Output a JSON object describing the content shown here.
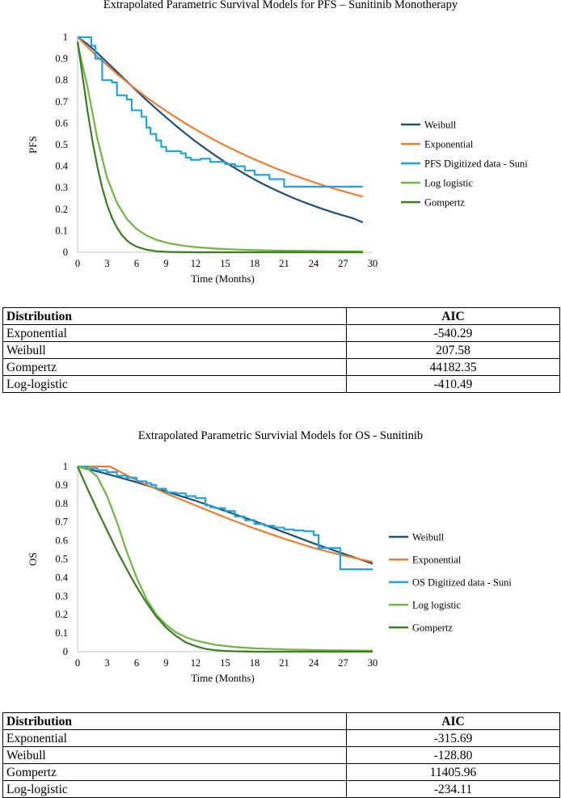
{
  "chart_data": [
    {
      "type": "line",
      "title": "Extrapolated Parametric Survival Models for PFS – Sunitinib Monotherapy",
      "xlabel": "Time (Months)",
      "ylabel": "PFS",
      "xlim": [
        0,
        30
      ],
      "ylim": [
        0,
        1
      ],
      "xticks": [
        "0",
        "3",
        "6",
        "9",
        "12",
        "15",
        "18",
        "21",
        "24",
        "27",
        "30"
      ],
      "yticks": [
        "0",
        "0.1",
        "0.2",
        "0.3",
        "0.4",
        "0.5",
        "0.6",
        "0.7",
        "0.8",
        "0.9",
        "1"
      ],
      "legend_position": "right",
      "series": [
        {
          "name": "Weibull",
          "color": "#1f4e79",
          "step": false,
          "x": [
            0,
            1,
            2,
            3,
            4,
            5,
            6,
            7,
            8,
            9,
            10,
            11,
            12,
            13,
            14,
            15,
            16,
            17,
            18,
            19,
            20,
            21,
            22,
            23,
            24,
            25,
            26,
            27,
            28,
            29
          ],
          "y": [
            1.0,
            0.968,
            0.927,
            0.883,
            0.839,
            0.795,
            0.751,
            0.708,
            0.667,
            0.627,
            0.588,
            0.551,
            0.515,
            0.482,
            0.45,
            0.419,
            0.391,
            0.364,
            0.338,
            0.314,
            0.292,
            0.271,
            0.251,
            0.233,
            0.216,
            0.2,
            0.185,
            0.171,
            0.158,
            0.139
          ]
        },
        {
          "name": "Exponential",
          "color": "#ed7d31",
          "step": false,
          "x": [
            0,
            1,
            2,
            3,
            4,
            5,
            6,
            7,
            8,
            9,
            10,
            11,
            12,
            13,
            14,
            15,
            16,
            17,
            18,
            19,
            20,
            21,
            22,
            23,
            24,
            25,
            26,
            27,
            28,
            29
          ],
          "y": [
            1.0,
            0.955,
            0.91,
            0.87,
            0.829,
            0.792,
            0.756,
            0.721,
            0.688,
            0.657,
            0.627,
            0.598,
            0.571,
            0.545,
            0.52,
            0.496,
            0.474,
            0.452,
            0.432,
            0.412,
            0.393,
            0.375,
            0.358,
            0.342,
            0.326,
            0.311,
            0.297,
            0.284,
            0.271,
            0.259
          ]
        },
        {
          "name": "PFS Digitized data - Suni",
          "color": "#1fa3dc",
          "step": true,
          "x": [
            0,
            1.4,
            1.8,
            2.5,
            3.5,
            4.0,
            5.0,
            5.5,
            6.5,
            7.0,
            7.4,
            8.0,
            8.5,
            9.0,
            10.5,
            11.0,
            11.5,
            12.5,
            13.5,
            14.0,
            15.0,
            16.0,
            17.0,
            18.0,
            19.5,
            21.0,
            24.0,
            29.0
          ],
          "y": [
            1.0,
            0.96,
            0.9,
            0.8,
            0.79,
            0.73,
            0.71,
            0.66,
            0.63,
            0.58,
            0.55,
            0.52,
            0.49,
            0.47,
            0.46,
            0.44,
            0.43,
            0.435,
            0.42,
            0.42,
            0.41,
            0.4,
            0.38,
            0.36,
            0.34,
            0.305,
            0.305,
            0.305
          ]
        },
        {
          "name": "Log logistic",
          "color": "#70b53f",
          "step": false,
          "x": [
            0,
            1,
            2,
            3,
            4,
            5,
            6,
            7,
            8,
            9,
            10,
            11,
            12,
            14,
            16,
            18,
            20,
            22,
            24,
            26,
            29
          ],
          "y": [
            0.97,
            0.77,
            0.53,
            0.345,
            0.23,
            0.155,
            0.108,
            0.078,
            0.058,
            0.045,
            0.036,
            0.029,
            0.024,
            0.017,
            0.013,
            0.01,
            0.008,
            0.007,
            0.006,
            0.005,
            0.004
          ]
        },
        {
          "name": "Gompertz",
          "color": "#3a7d22",
          "step": false,
          "x": [
            0,
            0.5,
            1,
            1.5,
            2,
            2.5,
            3,
            3.5,
            4,
            4.5,
            5,
            5.5,
            6,
            7,
            8,
            9,
            10,
            12,
            14,
            17,
            20,
            29
          ],
          "y": [
            0.98,
            0.82,
            0.66,
            0.52,
            0.4,
            0.3,
            0.22,
            0.16,
            0.115,
            0.08,
            0.055,
            0.038,
            0.026,
            0.012,
            0.005,
            0.002,
            0.001,
            0,
            0,
            0,
            0,
            0
          ]
        }
      ],
      "table": {
        "headers": [
          "Distribution",
          "AIC"
        ],
        "rows": [
          [
            "Exponential",
            "-540.29"
          ],
          [
            "Weibull",
            "207.58"
          ],
          [
            "Gompertz",
            "44182.35"
          ],
          [
            "Log-logistic",
            "-410.49"
          ]
        ]
      }
    },
    {
      "type": "line",
      "title": "Extrapolated Parametric Survivial Models for OS - Sunitinib",
      "xlabel": "Time (Months)",
      "ylabel": "OS",
      "xlim": [
        0,
        30
      ],
      "ylim": [
        0,
        1
      ],
      "xticks": [
        "0",
        "3",
        "6",
        "9",
        "12",
        "15",
        "18",
        "21",
        "24",
        "27",
        "30"
      ],
      "yticks": [
        "0",
        "0.1",
        "0.2",
        "0.3",
        "0.4",
        "0.5",
        "0.6",
        "0.7",
        "0.8",
        "0.9",
        "1"
      ],
      "legend_position": "right",
      "series": [
        {
          "name": "Weibull",
          "color": "#1f4e79",
          "step": false,
          "x": [
            0,
            3,
            6,
            9,
            12,
            15,
            18,
            21,
            24,
            27,
            30
          ],
          "y": [
            1.0,
            0.96,
            0.915,
            0.865,
            0.815,
            0.76,
            0.705,
            0.645,
            0.585,
            0.53,
            0.475
          ]
        },
        {
          "name": "Exponential",
          "color": "#ed7d31",
          "step": false,
          "x": [
            0,
            3.3,
            6,
            9,
            12,
            15,
            18,
            21,
            24,
            27,
            30
          ],
          "y": [
            1.0,
            1.0,
            0.925,
            0.855,
            0.79,
            0.725,
            0.665,
            0.61,
            0.56,
            0.52,
            0.485
          ]
        },
        {
          "name": "OS Digitized data - Suni",
          "color": "#1fa3dc",
          "step": true,
          "x": [
            0,
            1,
            2,
            3,
            4,
            5,
            6,
            7,
            7.5,
            8,
            9,
            10,
            11,
            12,
            13,
            13.5,
            14,
            15,
            16,
            17,
            18,
            19,
            20,
            21,
            22,
            23,
            24,
            24.5,
            26.7,
            30
          ],
          "y": [
            1.0,
            0.99,
            0.98,
            0.97,
            0.95,
            0.94,
            0.92,
            0.91,
            0.9,
            0.88,
            0.86,
            0.855,
            0.84,
            0.83,
            0.79,
            0.78,
            0.775,
            0.76,
            0.73,
            0.71,
            0.69,
            0.68,
            0.67,
            0.66,
            0.655,
            0.65,
            0.63,
            0.56,
            0.445,
            0.445
          ]
        },
        {
          "name": "Log logistic",
          "color": "#70b53f",
          "step": false,
          "x": [
            0,
            1,
            2,
            3,
            4,
            5,
            6,
            7,
            8,
            9,
            10,
            11,
            12,
            14,
            16,
            18,
            20,
            22,
            24,
            26,
            28,
            30
          ],
          "y": [
            1.0,
            0.99,
            0.945,
            0.84,
            0.7,
            0.54,
            0.4,
            0.285,
            0.2,
            0.145,
            0.105,
            0.078,
            0.06,
            0.037,
            0.025,
            0.018,
            0.014,
            0.011,
            0.009,
            0.007,
            0.006,
            0.005
          ]
        },
        {
          "name": "Gompertz",
          "color": "#3a7d22",
          "step": false,
          "x": [
            0,
            1,
            2,
            3,
            4,
            5,
            6,
            7,
            8,
            9,
            10,
            11,
            12,
            13,
            14,
            15,
            16,
            17,
            18,
            20,
            22,
            30
          ],
          "y": [
            1.0,
            0.88,
            0.765,
            0.655,
            0.545,
            0.445,
            0.35,
            0.265,
            0.19,
            0.13,
            0.085,
            0.05,
            0.03,
            0.015,
            0.008,
            0.004,
            0.002,
            0.001,
            0,
            0,
            0,
            0
          ]
        }
      ],
      "table": {
        "headers": [
          "Distribution",
          "AIC"
        ],
        "rows": [
          [
            "Exponential",
            "-315.69"
          ],
          [
            "Weibull",
            "-128.80"
          ],
          [
            "Gompertz",
            "11405.96"
          ],
          [
            "Log-logistic",
            "-234.11"
          ]
        ]
      }
    }
  ]
}
